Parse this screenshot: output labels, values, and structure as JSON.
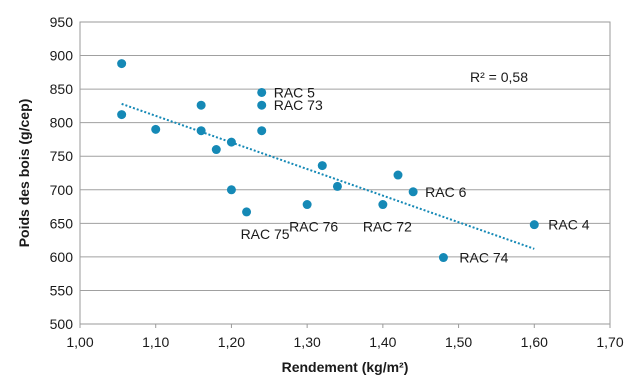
{
  "chart_data": {
    "type": "scatter",
    "xlabel": "Rendement (kg/m²)",
    "ylabel": "Poids des bois (g/cep)",
    "xlim": [
      1.0,
      1.7
    ],
    "ylim": [
      500,
      950
    ],
    "x_ticks": [
      "1,00",
      "1,10",
      "1,20",
      "1,30",
      "1,40",
      "1,50",
      "1,60",
      "1,70"
    ],
    "y_ticks": [
      "500",
      "550",
      "600",
      "650",
      "700",
      "750",
      "800",
      "850",
      "900",
      "950"
    ],
    "grid": "horizontal",
    "point_color": "#1589b6",
    "trendline_color": "#1589b6",
    "trendline": {
      "x": [
        1.055,
        1.6
      ],
      "y": [
        828,
        612
      ]
    },
    "r2_label": "R² = 0,58",
    "points": [
      {
        "x": 1.055,
        "y": 888,
        "label": ""
      },
      {
        "x": 1.055,
        "y": 812,
        "label": ""
      },
      {
        "x": 1.1,
        "y": 790,
        "label": ""
      },
      {
        "x": 1.16,
        "y": 826,
        "label": ""
      },
      {
        "x": 1.16,
        "y": 788,
        "label": ""
      },
      {
        "x": 1.18,
        "y": 760,
        "label": ""
      },
      {
        "x": 1.2,
        "y": 771,
        "label": ""
      },
      {
        "x": 1.2,
        "y": 700,
        "label": ""
      },
      {
        "x": 1.22,
        "y": 667,
        "label": "RAC 75"
      },
      {
        "x": 1.24,
        "y": 845,
        "label": "RAC 5"
      },
      {
        "x": 1.24,
        "y": 826,
        "label": "RAC 73"
      },
      {
        "x": 1.24,
        "y": 788,
        "label": ""
      },
      {
        "x": 1.3,
        "y": 678,
        "label": "RAC 76"
      },
      {
        "x": 1.32,
        "y": 736,
        "label": ""
      },
      {
        "x": 1.34,
        "y": 705,
        "label": ""
      },
      {
        "x": 1.4,
        "y": 678,
        "label": "RAC 72"
      },
      {
        "x": 1.42,
        "y": 722,
        "label": ""
      },
      {
        "x": 1.44,
        "y": 697,
        "label": "RAC 6"
      },
      {
        "x": 1.48,
        "y": 599,
        "label": "RAC 74"
      },
      {
        "x": 1.6,
        "y": 648,
        "label": "RAC 4"
      }
    ]
  }
}
